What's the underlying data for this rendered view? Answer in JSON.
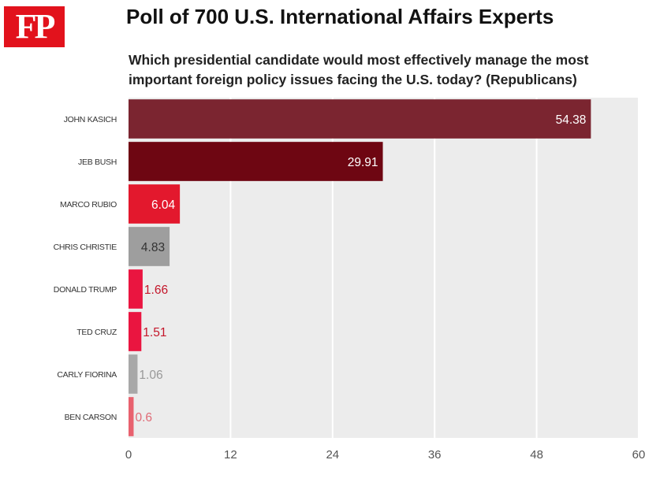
{
  "header": {
    "logo_text": "FP",
    "title": "Poll of 700 U.S. International Affairs Experts",
    "subtitle": "Which presidential candidate would most effectively manage the most important foreign policy issues facing the U.S. today? (Republicans)"
  },
  "chart_data": {
    "type": "bar",
    "orientation": "horizontal",
    "title": "Poll of 700 U.S. International Affairs Experts",
    "subtitle": "Which presidential candidate would most effectively manage the most important foreign policy issues facing the U.S. today? (Republicans)",
    "categories": [
      "JOHN KASICH",
      "JEB BUSH",
      "MARCO RUBIO",
      "CHRIS CHRISTIE",
      "DONALD TRUMP",
      "TED CRUZ",
      "CARLY FIORINA",
      "BEN CARSON"
    ],
    "values": [
      54.38,
      29.91,
      6.04,
      4.83,
      1.66,
      1.51,
      1.06,
      0.6
    ],
    "data_labels": [
      "54.38",
      "29.91",
      "6.04",
      "4.83",
      "1.66",
      "1.51",
      "1.06",
      "0.6"
    ],
    "bar_colors": [
      "#7b2530",
      "#6e0612",
      "#e3182d",
      "#9e9e9e",
      "#ea1540",
      "#ea1540",
      "#a8a8a8",
      "#e8616e"
    ],
    "label_colors": [
      "#ffffff",
      "#ffffff",
      "#ffffff",
      "#333333",
      "#c4162a",
      "#c4162a",
      "#999999",
      "#e06a76"
    ],
    "label_inside": [
      true,
      true,
      true,
      true,
      false,
      false,
      false,
      false
    ],
    "x_ticks": [
      0,
      12,
      24,
      36,
      48,
      60
    ],
    "xlim": [
      0,
      60
    ],
    "xlabel": "",
    "ylabel": "",
    "grid": true,
    "legend": "none",
    "plot_background": "#ececec",
    "grid_color": "#ffffff"
  }
}
